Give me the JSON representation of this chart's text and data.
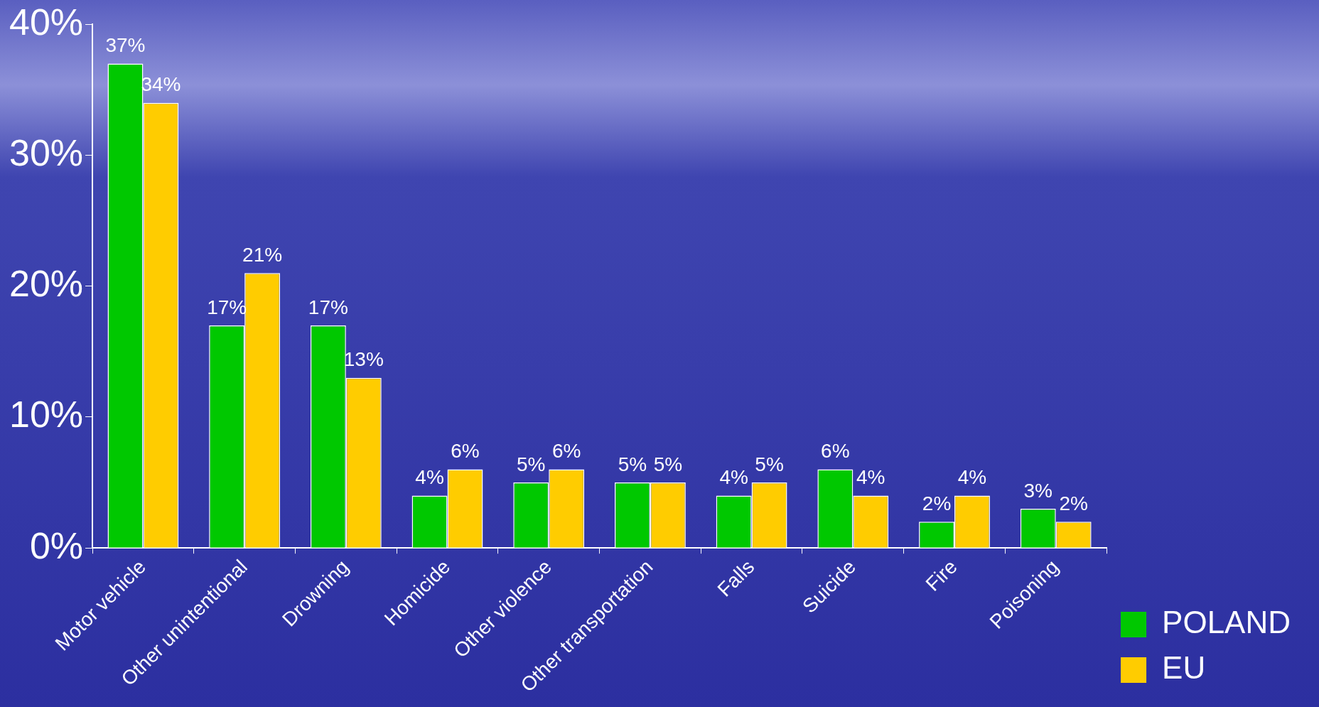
{
  "chart_data": {
    "type": "bar",
    "categories": [
      "Motor vehicle",
      "Other unintentional",
      "Drowning",
      "Homicide",
      "Other violence",
      "Other transportation",
      "Falls",
      "Suicide",
      "Fire",
      "Poisoning"
    ],
    "series": [
      {
        "name": "POLAND",
        "color": "#00c800",
        "values": [
          37,
          17,
          17,
          4,
          5,
          5,
          4,
          6,
          2,
          3
        ],
        "value_labels": [
          "37%",
          "17%",
          "17%",
          "4%",
          "5%",
          "5%",
          "4%",
          "6%",
          "2%",
          "3%"
        ]
      },
      {
        "name": "EU",
        "color": "#ffcc00",
        "values": [
          34,
          21,
          13,
          6,
          6,
          5,
          5,
          4,
          4,
          2
        ],
        "value_labels": [
          "34%",
          "21%",
          "13%",
          "6%",
          "6%",
          "5%",
          "5%",
          "4%",
          "4%",
          "2%"
        ]
      }
    ],
    "ylim": [
      0,
      40
    ],
    "yticks": [
      {
        "value": 0,
        "label": "0%"
      },
      {
        "value": 10,
        "label": "10%"
      },
      {
        "value": 20,
        "label": "20%"
      },
      {
        "value": 30,
        "label": "30%"
      },
      {
        "value": 40,
        "label": "40%"
      }
    ],
    "grid": false,
    "legend": "right"
  }
}
